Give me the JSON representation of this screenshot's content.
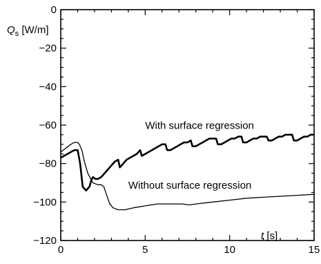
{
  "chart_data": {
    "type": "line",
    "title": "",
    "xlabel": "t [s]",
    "ylabel": "Q_s [W/m]",
    "xlim": [
      0,
      15
    ],
    "ylim": [
      -120,
      0
    ],
    "xticks": [
      0,
      5,
      10,
      15
    ],
    "yticks": [
      0,
      -20,
      -40,
      -60,
      -80,
      -100,
      -120
    ],
    "grid": false,
    "legend": "none",
    "series": [
      {
        "x": [
          0,
          0.4,
          0.8,
          1.0,
          1.15,
          1.3,
          1.5,
          1.7,
          1.8,
          1.9,
          2.05,
          2.2,
          2.4,
          2.6,
          2.8,
          3.0,
          3.2,
          3.4,
          3.5,
          3.7,
          3.9,
          4.1,
          4.3,
          4.5,
          4.7,
          4.8,
          5.0,
          5.2,
          5.4,
          5.6,
          5.8,
          6.0,
          6.2,
          6.3,
          6.5,
          6.7,
          6.9,
          7.1,
          7.3,
          7.5,
          7.7,
          7.8,
          8.0,
          8.2,
          8.4,
          8.6,
          8.8,
          9.0,
          9.2,
          9.3,
          9.5,
          9.7,
          9.9,
          10.1,
          10.3,
          10.5,
          10.7,
          10.8,
          11.0,
          11.2,
          11.4,
          11.6,
          11.8,
          12.0,
          12.2,
          12.3,
          12.5,
          12.7,
          12.9,
          13.1,
          13.3,
          13.5,
          13.7,
          13.8,
          14.0,
          14.2,
          14.4,
          14.6,
          14.8,
          15.0
        ],
        "y": [
          -77,
          -75,
          -73,
          -73,
          -80,
          -92,
          -94,
          -92,
          -89,
          -87,
          -88,
          -88,
          -87,
          -85,
          -83,
          -81,
          -79,
          -78,
          -82,
          -80,
          -78,
          -77,
          -76,
          -75,
          -73,
          -76,
          -75,
          -74,
          -73,
          -72,
          -71,
          -70,
          -70,
          -73,
          -73,
          -72,
          -71,
          -70,
          -69,
          -69,
          -68,
          -71,
          -71,
          -70,
          -69,
          -68,
          -67,
          -67,
          -67,
          -70,
          -70,
          -69,
          -68,
          -67,
          -67,
          -66,
          -66,
          -69,
          -69,
          -68,
          -67,
          -67,
          -66,
          -66,
          -66,
          -68,
          -68,
          -67,
          -66,
          -66,
          -65,
          -65,
          -65,
          -68,
          -68,
          -67,
          -66,
          -66,
          -65,
          -65
        ]
      },
      {
        "x": [
          0,
          0.3,
          0.6,
          0.8,
          1.0,
          1.1,
          1.25,
          1.4,
          1.6,
          1.9,
          2.2,
          2.4,
          2.55,
          2.7,
          2.9,
          3.1,
          3.4,
          3.8,
          4.3,
          5.0,
          5.7,
          6.5,
          7.2,
          7.6,
          8.0,
          9.0,
          10.0,
          11.0,
          12.0,
          13.0,
          14.0,
          15.0
        ],
        "y": [
          -74,
          -72,
          -70,
          -69,
          -69,
          -70,
          -73,
          -79,
          -85,
          -90,
          -91,
          -91,
          -92,
          -96,
          -101,
          -103,
          -104,
          -104,
          -103,
          -102,
          -101,
          -101,
          -101,
          -101.5,
          -101,
          -100,
          -99,
          -98,
          -97.5,
          -97,
          -96.5,
          -96
        ]
      }
    ],
    "annotations": [
      {
        "text": "With surface regression",
        "x": 5.0,
        "y": -62
      },
      {
        "text": "Without surface regression",
        "x": 4.0,
        "y": -93
      }
    ]
  }
}
